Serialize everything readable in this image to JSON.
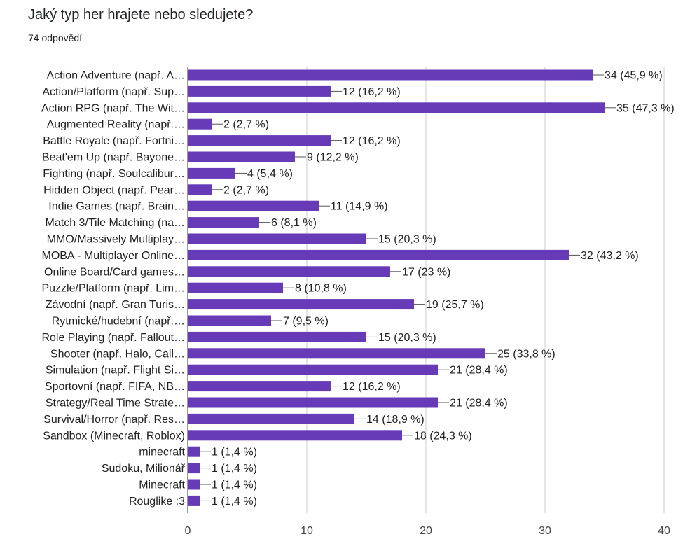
{
  "title": "Jaký typ her hrajete nebo sledujete?",
  "subtitle": "74 odpovědí",
  "colors": {
    "bar": "#673ab7",
    "grid": "#cccccc",
    "axis": "#333333",
    "text": "#212121"
  },
  "chart_data": {
    "type": "bar",
    "orientation": "horizontal",
    "title": "Jaký typ her hrajete nebo sledujete?",
    "xlim": [
      0,
      40
    ],
    "x_ticks": [
      0,
      10,
      20,
      30,
      40
    ],
    "grid": true,
    "categories": [
      "Action Adventure (např. A…",
      "Action/Platform (např. Sup…",
      "Action RPG (např. The Wit…",
      "Augmented Reality (např.…",
      "Battle Royale (např. Fortni…",
      "Beat'em Up (např. Bayone…",
      "Fighting (např. Soulcalibur…",
      "Hidden Object (např. Pear…",
      "Indie Games (např. Brain…",
      "Match 3/Tile Matching (na…",
      "MMO/Massively Multiplay…",
      "MOBA - Multiplayer Online…",
      "Online Board/Card games…",
      "Puzzle/Platform (např. Lim…",
      "Závodní (např. Gran Turis…",
      "Rytmické/hudební (např.…",
      "Role Playing (např. Fallout…",
      "Shooter (např. Halo, Call…",
      "Simulation (např. Flight Si…",
      "Sportovní (např. FIFA, NB…",
      "Strategy/Real Time Strate…",
      "Survival/Horror (např. Res…",
      "Sandbox (Minecraft, Roblox)",
      "minecraft",
      "Sudoku, Milionář",
      "Minecraft",
      "Rouglike :3"
    ],
    "values": [
      34,
      12,
      35,
      2,
      12,
      9,
      4,
      2,
      11,
      6,
      15,
      32,
      17,
      8,
      19,
      7,
      15,
      25,
      21,
      12,
      21,
      14,
      18,
      1,
      1,
      1,
      1
    ],
    "labels": [
      "34 (45,9 %)",
      "12 (16,2 %)",
      "35 (47,3 %)",
      "2 (2,7 %)",
      "12 (16,2 %)",
      "9 (12,2 %)",
      "4 (5,4 %)",
      "2 (2,7 %)",
      "11 (14,9 %)",
      "6 (8,1 %)",
      "15 (20,3 %)",
      "32 (43,2 %)",
      "17 (23 %)",
      "8 (10,8 %)",
      "19 (25,7 %)",
      "7 (9,5 %)",
      "15 (20,3 %)",
      "25 (33,8 %)",
      "21 (28,4 %)",
      "12 (16,2 %)",
      "21 (28,4 %)",
      "14 (18,9 %)",
      "18 (24,3 %)",
      "1 (1,4 %)",
      "1 (1,4 %)",
      "1 (1,4 %)",
      "1 (1,4 %)"
    ]
  }
}
